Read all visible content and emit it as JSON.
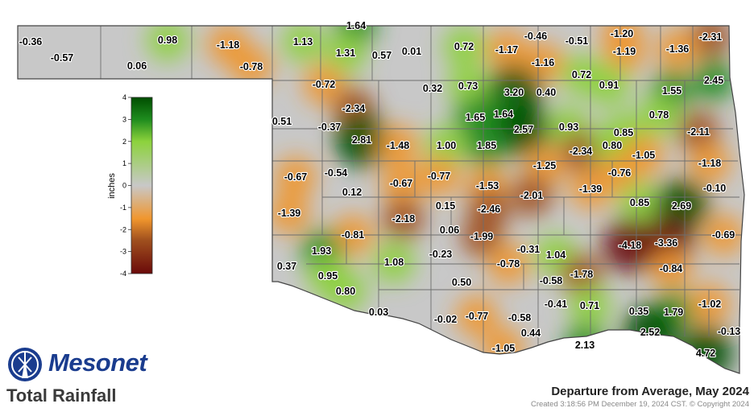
{
  "map": {
    "title": "Departure from Average, May 2024",
    "product": "Total Rainfall",
    "created": "Created 3:18:56 PM December 19, 2024 CST. © Copyright 2024",
    "brand": "Mesonet",
    "logo_icon": "mesonet-windmill-logo",
    "legend": {
      "unit": "inches",
      "ticks": [
        "4",
        "3",
        "2",
        "1",
        "0",
        "-1",
        "-2",
        "-3",
        "-4"
      ],
      "colors": [
        "#004d00",
        "#1e8c1e",
        "#8cd23c",
        "#c8c8c8",
        "#f0962d",
        "#a0501e",
        "#6a0a0a"
      ]
    }
  },
  "stations": [
    "-0.36",
    "-0.57",
    "0.06",
    "0.98",
    "-1.18",
    "-0.78",
    "1.13",
    "1.64",
    "1.31",
    "0.57",
    "0.01",
    "0.72",
    "-1.17",
    "-0.46",
    "-0.51",
    "-1.20",
    "-2.31",
    "-1.16",
    "-1.19",
    "-1.36",
    "-0.72",
    "0.32",
    "0.73",
    "3.20",
    "0.40",
    "0.72",
    "0.91",
    "1.55",
    "2.45",
    "-2.34",
    "0.51",
    "-0.37",
    "1.65",
    "1.64",
    "2.57",
    "0.93",
    "0.78",
    "0.85",
    "-2.11",
    "2.81",
    "-1.48",
    "1.00",
    "1.85",
    "-2.34",
    "0.80",
    "-1.05",
    "-1.25",
    "-0.76",
    "-1.18",
    "-0.67",
    "-0.54",
    "-0.67",
    "-0.77",
    "-1.53",
    "-1.39",
    "-0.10",
    "0.12",
    "-2.01",
    "0.85",
    "2.69",
    "-1.39",
    "-2.18",
    "0.15",
    "-2.46",
    "0.06",
    "-0.81",
    "-1.99",
    "-4.18",
    "-3.36",
    "-0.69",
    "1.93",
    "1.08",
    "-0.23",
    "-0.31",
    "-0.78",
    "1.04",
    "-0.84",
    "0.37",
    "0.95",
    "0.50",
    "-0.58",
    "-1.78",
    "0.80",
    "-0.41",
    "0.71",
    "0.35",
    "1.79",
    "-1.02",
    "0.03",
    "-0.02",
    "-0.77",
    "-0.58",
    "0.44",
    "2.52",
    "-0.13",
    "2.13",
    "-1.05",
    "4.72"
  ]
}
